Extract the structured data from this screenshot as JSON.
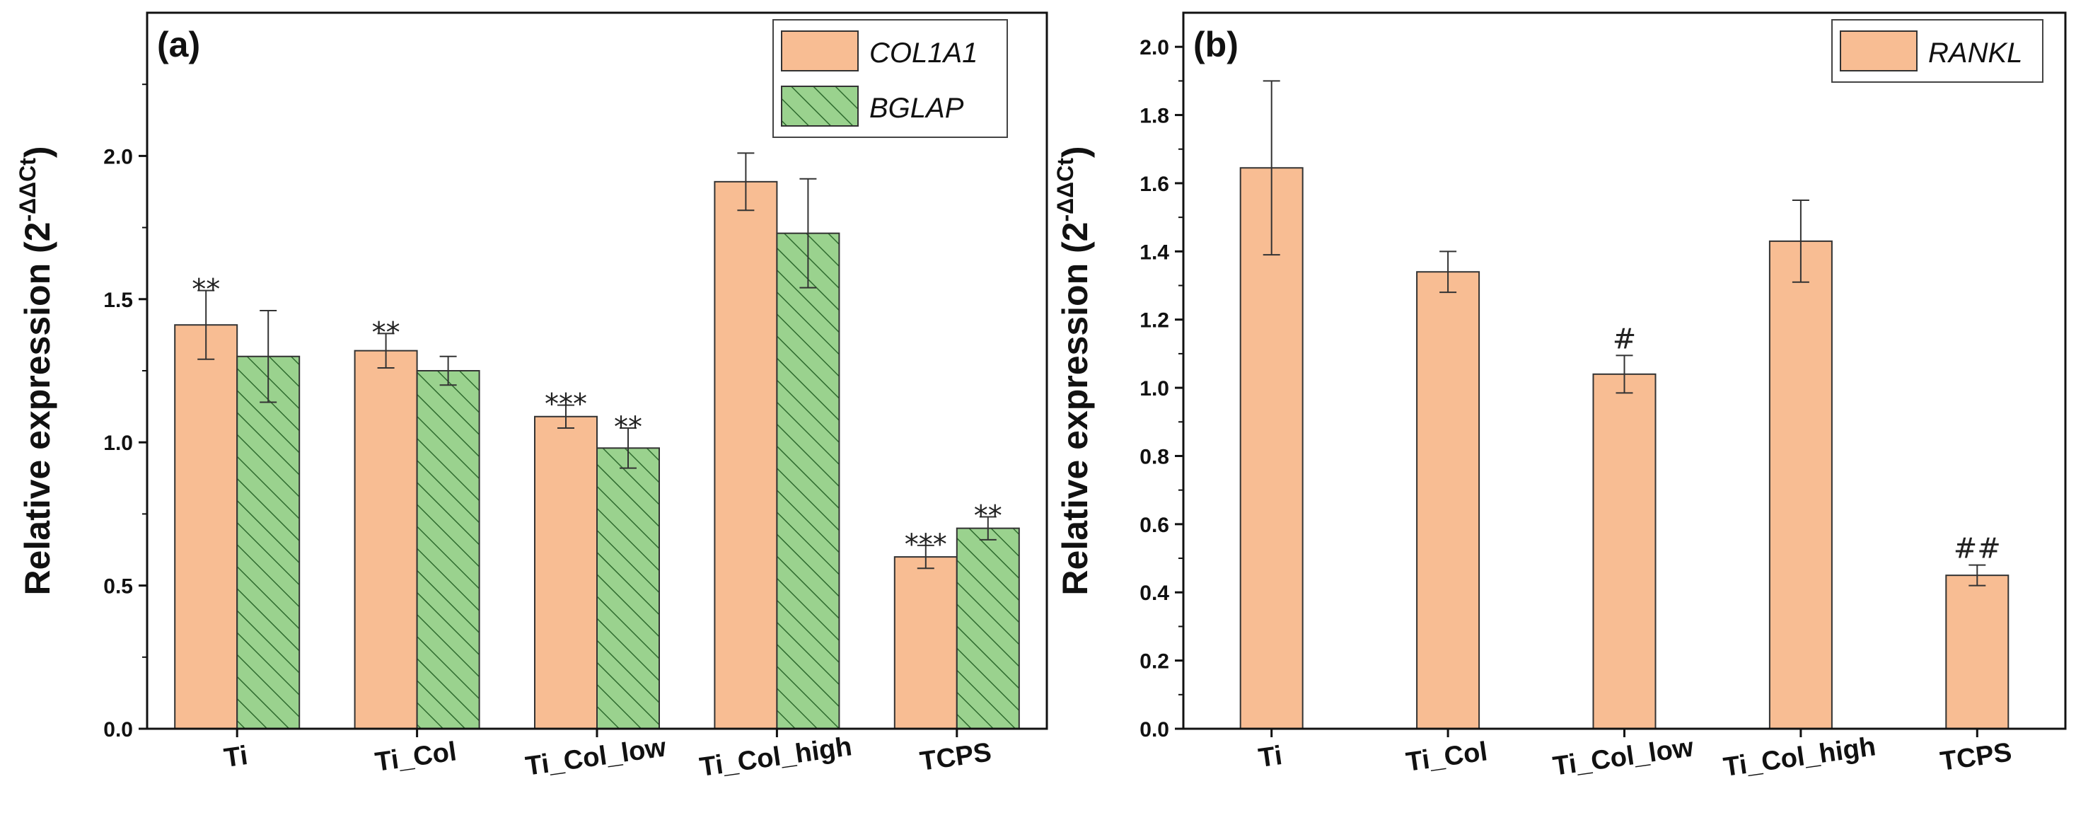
{
  "colors": {
    "orange": "#f8bd93",
    "green": "#9ad28e",
    "hatch": "#2f6b2f",
    "edge": "#333333"
  },
  "chart_data": [
    {
      "panel": "(a)",
      "type": "bar",
      "ylabel": "Relative expression (2",
      "ylabel_sup": "-ΔΔCt",
      "ylabel_close": ")",
      "ylim": [
        0,
        2.5
      ],
      "yticks": [
        "0.0",
        "0.5",
        "1.0",
        "1.5",
        "2.0"
      ],
      "categories": [
        "Ti",
        "Ti_Col",
        "Ti_Col_low",
        "Ti_Col_high",
        "TCPS"
      ],
      "legend_position": "top-right",
      "series": [
        {
          "name": "COL1A1",
          "style": "solid-orange",
          "values": [
            1.41,
            1.32,
            1.09,
            1.91,
            0.6
          ],
          "errors": [
            0.12,
            0.06,
            0.04,
            0.1,
            0.04
          ],
          "labels": [
            "**",
            "**",
            "***",
            "",
            "***"
          ]
        },
        {
          "name": "BGLAP",
          "style": "hatched-green",
          "values": [
            1.3,
            1.25,
            0.98,
            1.73,
            0.7
          ],
          "errors": [
            0.16,
            0.05,
            0.07,
            0.19,
            0.04
          ],
          "labels": [
            "",
            "",
            "**",
            "",
            "**"
          ]
        }
      ]
    },
    {
      "panel": "(b)",
      "type": "bar",
      "ylabel": "Relative expression (2",
      "ylabel_sup": "-ΔΔCt",
      "ylabel_close": ")",
      "ylim": [
        0,
        2.1
      ],
      "yticks": [
        "0.0",
        "0.2",
        "0.4",
        "0.6",
        "0.8",
        "1.0",
        "1.2",
        "1.4",
        "1.6",
        "1.8",
        "2.0"
      ],
      "categories": [
        "Ti",
        "Ti_Col",
        "Ti_Col_low",
        "Ti_Col_high",
        "TCPS"
      ],
      "legend_position": "top-right",
      "series": [
        {
          "name": "RANKL",
          "style": "solid-orange",
          "values": [
            1.645,
            1.34,
            1.04,
            1.43,
            0.45
          ],
          "errors": [
            0.255,
            0.06,
            0.055,
            0.12,
            0.03
          ],
          "labels": [
            "",
            "",
            "#",
            "",
            "##"
          ]
        }
      ]
    }
  ]
}
